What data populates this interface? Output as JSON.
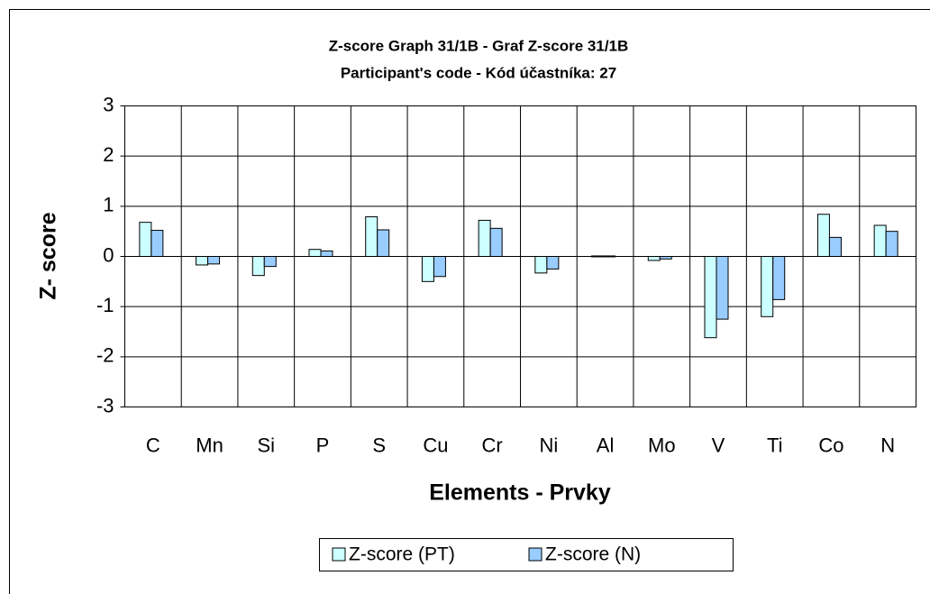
{
  "chart_data": {
    "type": "bar",
    "title": "Z-score Graph 31/1B - Graf Z-score 31/1B",
    "subtitle": "Participant's code - Kód účastníka:  27",
    "x_label": "Elements - Prvky",
    "y_label": "Z- score",
    "categories": [
      "C",
      "Mn",
      "Si",
      "P",
      "S",
      "Cu",
      "Cr",
      "Ni",
      "Al",
      "Mo",
      "V",
      "Ti",
      "Co",
      "N"
    ],
    "series": [
      {
        "name": "Z-score (PT)",
        "color": "#ccffff",
        "values": [
          0.68,
          -0.17,
          -0.38,
          0.14,
          0.79,
          -0.5,
          0.72,
          -0.33,
          0.01,
          -0.08,
          -1.62,
          -1.2,
          0.84,
          0.62
        ]
      },
      {
        "name": "Z-score (N)",
        "color": "#99ccff",
        "values": [
          0.52,
          -0.15,
          -0.2,
          0.11,
          0.53,
          -0.4,
          0.56,
          -0.25,
          0.01,
          -0.05,
          -1.25,
          -0.86,
          0.38,
          0.5
        ]
      }
    ],
    "ylim": [
      -3,
      3
    ],
    "yticks": [
      -3,
      -2,
      -1,
      0,
      1,
      2,
      3
    ],
    "grid": true,
    "legend": "bottom"
  }
}
